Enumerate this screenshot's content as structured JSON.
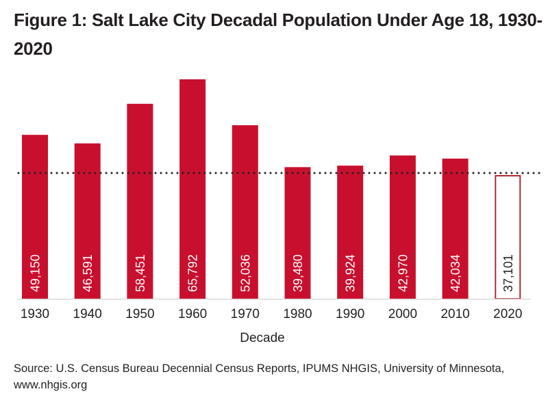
{
  "title": "Figure 1:  Salt Lake City Decadal Population Under Age 18, 1930-2020",
  "source": "Source: U.S. Census Bureau Decennial Census Reports, IPUMS NHGIS, University of Minnesota, www.nhgis.org",
  "colors": {
    "bar": "#c8102e",
    "highlight_outline": "#b0282e",
    "reference_line": "#231f20",
    "text": "#231f20"
  },
  "chart_data": {
    "type": "bar",
    "title": "Figure 1:  Salt Lake City Decadal Population Under Age 18, 1930-2020",
    "xlabel": "Decade",
    "ylabel": "",
    "categories": [
      "1930",
      "1940",
      "1950",
      "1960",
      "1970",
      "1980",
      "1990",
      "2000",
      "2010",
      "2020"
    ],
    "values": [
      49150,
      46591,
      58451,
      65792,
      52036,
      39480,
      39924,
      42970,
      42034,
      37101
    ],
    "value_labels": [
      "49,150",
      "46,591",
      "58,451",
      "65,792",
      "52,036",
      "39,480",
      "39,924",
      "42,970",
      "42,034",
      "37,101"
    ],
    "highlighted_category": "2020",
    "reference_line": {
      "value": 37101,
      "style": "dotted"
    },
    "ylim": [
      0,
      65792
    ],
    "grid": false,
    "legend": "none"
  }
}
